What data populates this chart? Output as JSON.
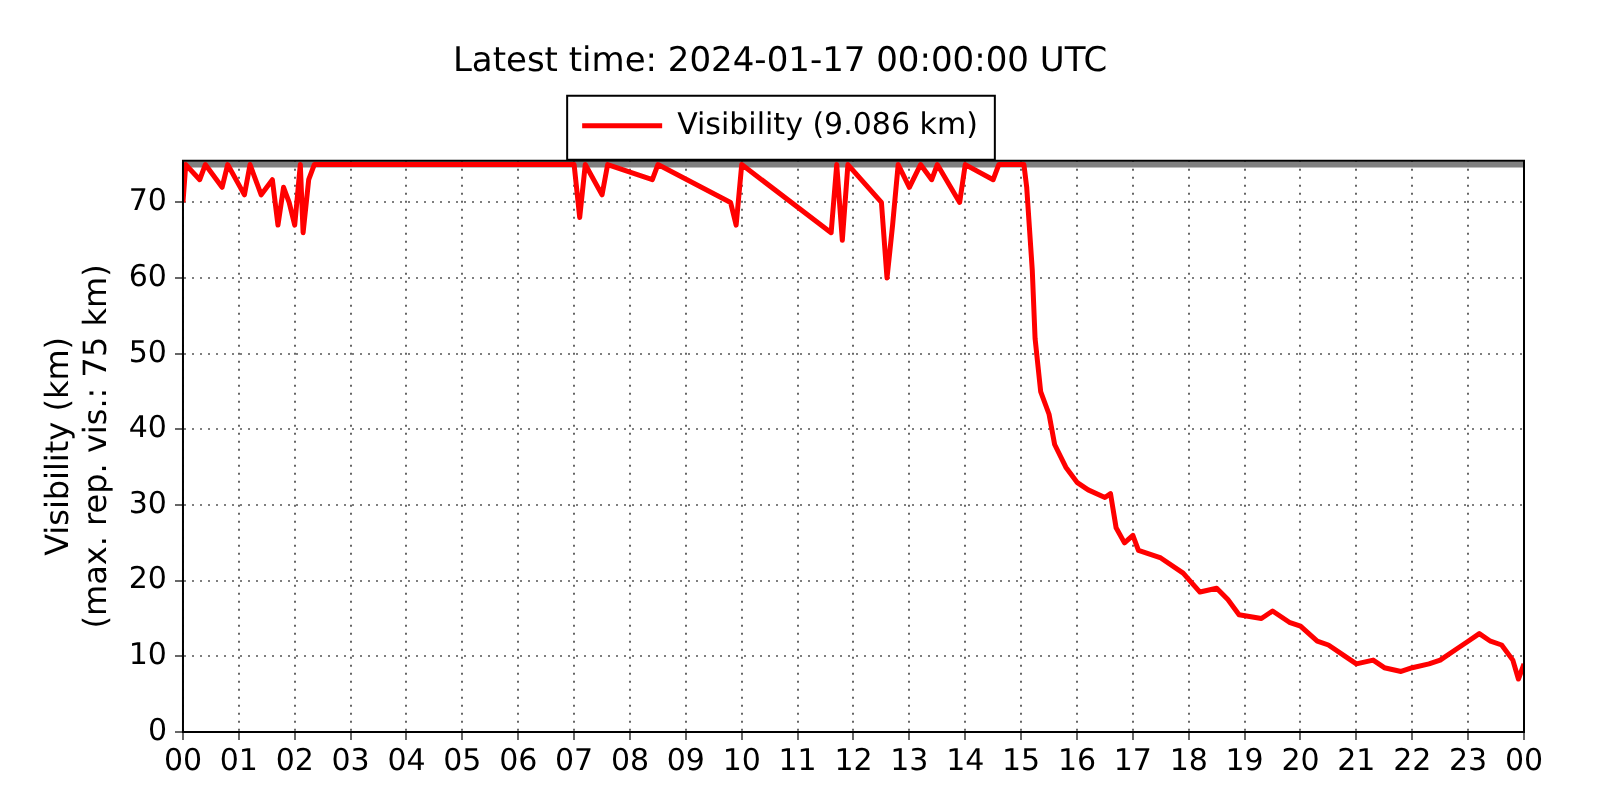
{
  "chart_data": {
    "type": "line",
    "title": "Latest time: 2024-01-17 00:00:00 UTC",
    "ylabel": "Visibility (km)\n(max. rep. vis.: 75 km)",
    "legend": "top",
    "grid": true,
    "marker": "none",
    "line_style": "solid",
    "xlim": [
      0,
      24
    ],
    "xticks": [
      {
        "value": 0,
        "label": "00"
      },
      {
        "value": 1,
        "label": "01"
      },
      {
        "value": 2,
        "label": "02"
      },
      {
        "value": 3,
        "label": "03"
      },
      {
        "value": 4,
        "label": "04"
      },
      {
        "value": 5,
        "label": "05"
      },
      {
        "value": 6,
        "label": "06"
      },
      {
        "value": 7,
        "label": "07"
      },
      {
        "value": 8,
        "label": "08"
      },
      {
        "value": 9,
        "label": "09"
      },
      {
        "value": 10,
        "label": "10"
      },
      {
        "value": 11,
        "label": "11"
      },
      {
        "value": 12,
        "label": "12"
      },
      {
        "value": 13,
        "label": "13"
      },
      {
        "value": 14,
        "label": "14"
      },
      {
        "value": 15,
        "label": "15"
      },
      {
        "value": 16,
        "label": "16"
      },
      {
        "value": 17,
        "label": "17"
      },
      {
        "value": 18,
        "label": "18"
      },
      {
        "value": 19,
        "label": "19"
      },
      {
        "value": 20,
        "label": "20"
      },
      {
        "value": 21,
        "label": "21"
      },
      {
        "value": 22,
        "label": "22"
      },
      {
        "value": 23,
        "label": "23"
      },
      {
        "value": 24,
        "label": "00"
      }
    ],
    "ylim": [
      0,
      75.5
    ],
    "yticks": [
      0,
      10,
      20,
      30,
      40,
      50,
      60,
      70
    ],
    "ref_lines": [
      {
        "axis": "y",
        "value": 75,
        "color": "#808080"
      }
    ],
    "series": [
      {
        "name": "Visibility (9.086 km)",
        "color": "#ff0000",
        "x": [
          0,
          0.05,
          0.3,
          0.4,
          0.7,
          0.8,
          1.1,
          1.2,
          1.4,
          1.6,
          1.7,
          1.8,
          1.9,
          2.0,
          2.1,
          2.15,
          2.25,
          2.35,
          7.0,
          7.1,
          7.2,
          7.5,
          7.6,
          8.4,
          8.5,
          9.8,
          9.9,
          10.0,
          11.6,
          11.7,
          11.8,
          11.9,
          12.5,
          12.6,
          12.7,
          12.8,
          13.0,
          13.2,
          13.4,
          13.5,
          13.9,
          14.0,
          14.5,
          14.6,
          15.05,
          15.1,
          15.2,
          15.25,
          15.35,
          15.5,
          15.6,
          15.8,
          16.0,
          16.2,
          16.5,
          16.6,
          16.7,
          16.85,
          17.0,
          17.1,
          17.5,
          17.9,
          18.2,
          18.5,
          18.7,
          18.9,
          19.3,
          19.5,
          19.8,
          20.0,
          20.3,
          20.5,
          20.8,
          21.0,
          21.3,
          21.5,
          21.8,
          22.0,
          22.3,
          22.5,
          22.8,
          23.0,
          23.2,
          23.4,
          23.6,
          23.8,
          23.9,
          24
        ],
        "values": [
          70,
          75,
          73,
          75,
          72,
          75,
          71,
          75,
          71,
          73,
          67,
          72,
          70,
          67,
          75,
          66,
          73,
          75,
          75,
          68,
          75,
          71,
          75,
          73,
          75,
          70,
          67,
          75,
          66,
          75,
          65,
          75,
          70,
          60,
          67,
          75,
          72,
          75,
          73,
          75,
          70,
          75,
          73,
          75,
          75,
          72,
          61,
          52,
          45,
          42,
          38,
          35,
          33,
          32,
          31,
          31.5,
          27,
          25,
          26,
          24,
          23,
          21,
          18.5,
          19,
          17.5,
          15.5,
          15,
          16,
          14.5,
          14,
          12,
          11.5,
          10,
          9,
          9.5,
          8.5,
          8,
          8.5,
          9,
          9.5,
          11,
          12,
          13,
          12,
          11.5,
          9.5,
          7,
          9
        ]
      }
    ]
  }
}
